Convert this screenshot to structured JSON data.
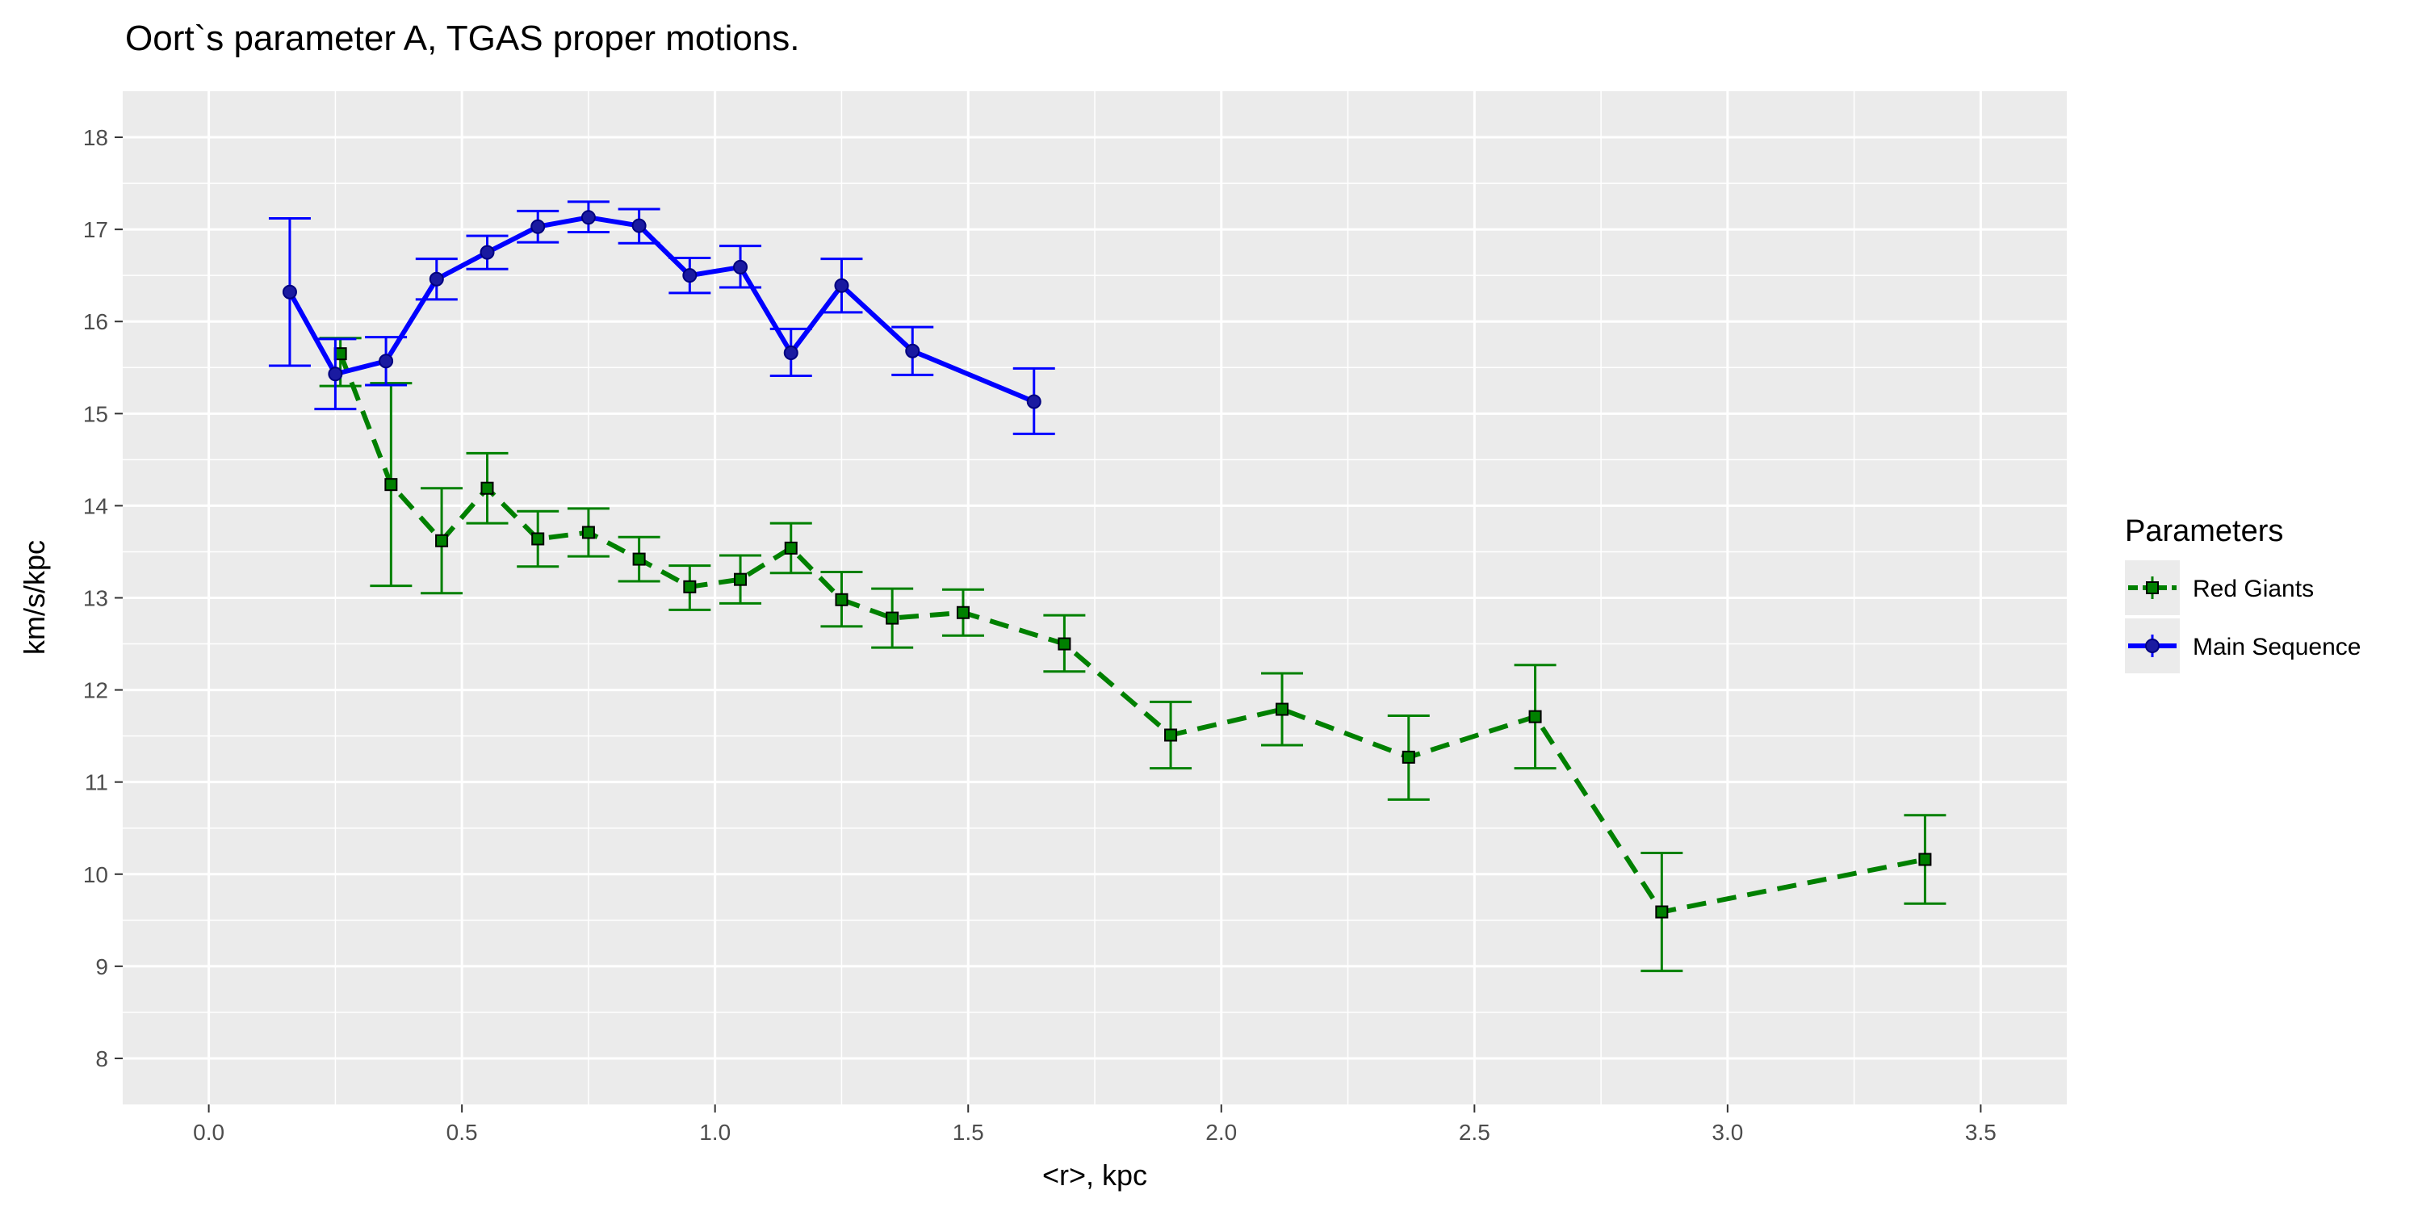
{
  "chart_data": {
    "type": "line",
    "title": "Oort`s parameter A,  TGAS  proper motions.",
    "xlabel": "<r>, kpc",
    "ylabel": "km/s/kpc",
    "xlim": [
      -0.17,
      3.67
    ],
    "ylim": [
      7.5,
      18.5
    ],
    "x_ticks": [
      {
        "value": 0.0,
        "label": "0.0"
      },
      {
        "value": 0.5,
        "label": "0.5"
      },
      {
        "value": 1.0,
        "label": "1.0"
      },
      {
        "value": 1.5,
        "label": "1.5"
      },
      {
        "value": 2.0,
        "label": "2.0"
      },
      {
        "value": 2.5,
        "label": "2.5"
      },
      {
        "value": 3.0,
        "label": "3.0"
      },
      {
        "value": 3.5,
        "label": "3.5"
      }
    ],
    "y_ticks": [
      {
        "value": 8,
        "label": "8"
      },
      {
        "value": 9,
        "label": "9"
      },
      {
        "value": 10,
        "label": "10"
      },
      {
        "value": 11,
        "label": "11"
      },
      {
        "value": 12,
        "label": "12"
      },
      {
        "value": 13,
        "label": "13"
      },
      {
        "value": 14,
        "label": "14"
      },
      {
        "value": 15,
        "label": "15"
      },
      {
        "value": 16,
        "label": "16"
      },
      {
        "value": 17,
        "label": "17"
      },
      {
        "value": 18,
        "label": "18"
      }
    ],
    "grid": true,
    "panel_background": "#ebebeb",
    "legend": {
      "title": "Parameters",
      "position": "right",
      "entries": [
        "Red Giants",
        "Main Sequence"
      ]
    },
    "series": [
      {
        "name": "Red Giants",
        "color": "#008000",
        "line_style": "dashed",
        "marker": "square",
        "points": [
          {
            "x": 0.26,
            "y": 15.65,
            "ymin": 15.3,
            "ymax": 15.82
          },
          {
            "x": 0.36,
            "y": 14.23,
            "ymin": 13.13,
            "ymax": 15.33
          },
          {
            "x": 0.46,
            "y": 13.62,
            "ymin": 13.05,
            "ymax": 14.19
          },
          {
            "x": 0.55,
            "y": 14.19,
            "ymin": 13.81,
            "ymax": 14.57
          },
          {
            "x": 0.65,
            "y": 13.64,
            "ymin": 13.34,
            "ymax": 13.94
          },
          {
            "x": 0.75,
            "y": 13.71,
            "ymin": 13.45,
            "ymax": 13.97
          },
          {
            "x": 0.85,
            "y": 13.42,
            "ymin": 13.18,
            "ymax": 13.66
          },
          {
            "x": 0.95,
            "y": 13.12,
            "ymin": 12.87,
            "ymax": 13.35
          },
          {
            "x": 1.05,
            "y": 13.2,
            "ymin": 12.94,
            "ymax": 13.46
          },
          {
            "x": 1.15,
            "y": 13.54,
            "ymin": 13.27,
            "ymax": 13.81
          },
          {
            "x": 1.25,
            "y": 12.98,
            "ymin": 12.69,
            "ymax": 13.28
          },
          {
            "x": 1.35,
            "y": 12.78,
            "ymin": 12.46,
            "ymax": 13.1
          },
          {
            "x": 1.49,
            "y": 12.84,
            "ymin": 12.59,
            "ymax": 13.09
          },
          {
            "x": 1.69,
            "y": 12.5,
            "ymin": 12.2,
            "ymax": 12.81
          },
          {
            "x": 1.9,
            "y": 11.51,
            "ymin": 11.15,
            "ymax": 11.87
          },
          {
            "x": 2.12,
            "y": 11.79,
            "ymin": 11.4,
            "ymax": 12.18
          },
          {
            "x": 2.37,
            "y": 11.27,
            "ymin": 10.81,
            "ymax": 11.72
          },
          {
            "x": 2.62,
            "y": 11.71,
            "ymin": 11.15,
            "ymax": 12.27
          },
          {
            "x": 2.87,
            "y": 9.59,
            "ymin": 8.95,
            "ymax": 10.23
          },
          {
            "x": 3.39,
            "y": 10.16,
            "ymin": 9.68,
            "ymax": 10.64
          }
        ]
      },
      {
        "name": "Main Sequence",
        "color": "#0000ff",
        "line_style": "solid",
        "marker": "circle",
        "points": [
          {
            "x": 0.16,
            "y": 16.32,
            "ymin": 15.52,
            "ymax": 17.12
          },
          {
            "x": 0.25,
            "y": 15.43,
            "ymin": 15.05,
            "ymax": 15.81
          },
          {
            "x": 0.35,
            "y": 15.57,
            "ymin": 15.31,
            "ymax": 15.83
          },
          {
            "x": 0.45,
            "y": 16.46,
            "ymin": 16.24,
            "ymax": 16.68
          },
          {
            "x": 0.55,
            "y": 16.75,
            "ymin": 16.57,
            "ymax": 16.93
          },
          {
            "x": 0.65,
            "y": 17.03,
            "ymin": 16.86,
            "ymax": 17.2
          },
          {
            "x": 0.75,
            "y": 17.13,
            "ymin": 16.97,
            "ymax": 17.3
          },
          {
            "x": 0.85,
            "y": 17.04,
            "ymin": 16.85,
            "ymax": 17.22
          },
          {
            "x": 0.95,
            "y": 16.5,
            "ymin": 16.31,
            "ymax": 16.69
          },
          {
            "x": 1.05,
            "y": 16.59,
            "ymin": 16.37,
            "ymax": 16.82
          },
          {
            "x": 1.15,
            "y": 15.66,
            "ymin": 15.41,
            "ymax": 15.92
          },
          {
            "x": 1.25,
            "y": 16.39,
            "ymin": 16.1,
            "ymax": 16.68
          },
          {
            "x": 1.39,
            "y": 15.68,
            "ymin": 15.42,
            "ymax": 15.94
          },
          {
            "x": 1.63,
            "y": 15.13,
            "ymin": 14.78,
            "ymax": 15.49
          }
        ]
      }
    ]
  }
}
